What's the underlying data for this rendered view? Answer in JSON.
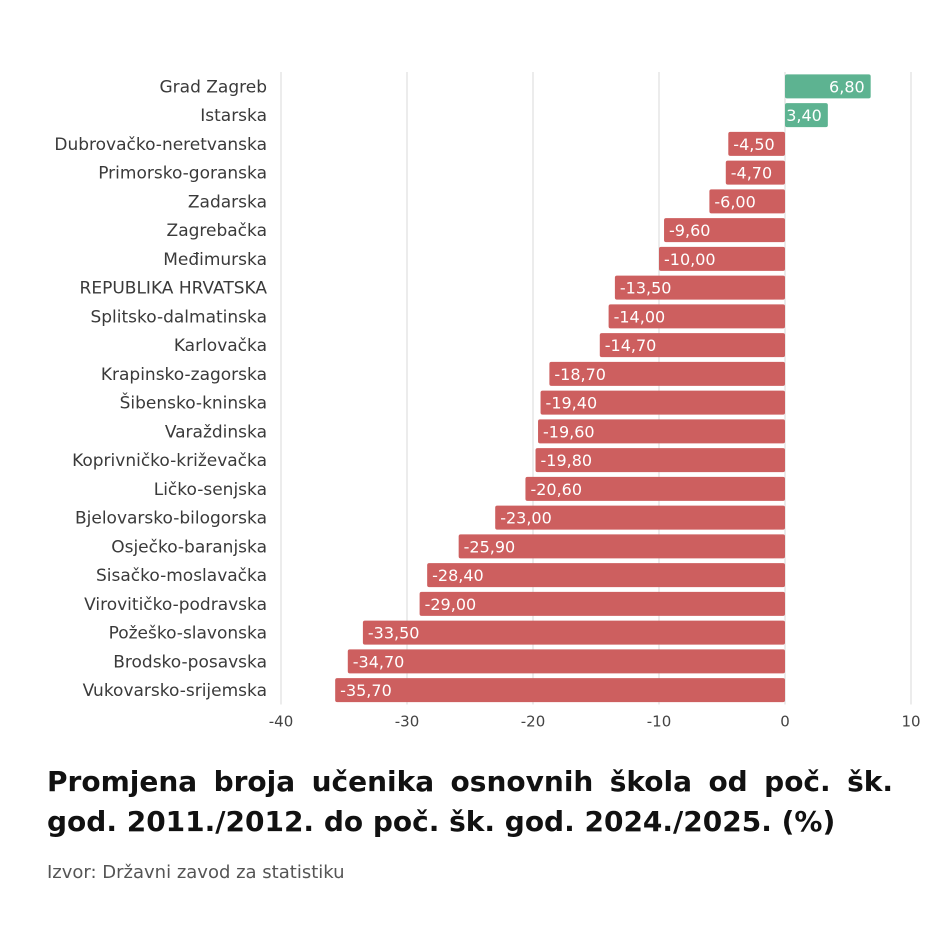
{
  "title": "Promjena broja učenika osnovnih škola od poč. šk. god. 2011./2012. do poč. šk. god. 2024./2025. (%)",
  "source": "Izvor: Državni zavod za statistiku",
  "colors": {
    "positive": "#5db391",
    "negative": "#cd5f5f"
  },
  "chart_data": {
    "type": "bar",
    "orientation": "horizontal",
    "categories": [
      "Grad Zagreb",
      "Istarska",
      "Dubrovačko-neretvanska",
      "Primorsko-goranska",
      "Zadarska",
      "Zagrebačka",
      "Međimurska",
      "REPUBLIKA HRVATSKA",
      "Splitsko-dalmatinska",
      "Karlovačka",
      "Krapinsko-zagorska",
      "Šibensko-kninska",
      "Varaždinska",
      "Koprivničko-križevačka",
      "Ličko-senjska",
      "Bjelovarsko-bilogorska",
      "Osječko-baranjska",
      "Sisačko-moslavačka",
      "Virovitičko-podravska",
      "Požeško-slavonska",
      "Brodsko-posavska",
      "Vukovarsko-srijemska"
    ],
    "values": [
      6.8,
      3.4,
      -4.5,
      -4.7,
      -6.0,
      -9.6,
      -10.0,
      -13.5,
      -14.0,
      -14.7,
      -18.7,
      -19.4,
      -19.6,
      -19.8,
      -20.6,
      -23.0,
      -25.9,
      -28.4,
      -29.0,
      -33.5,
      -34.7,
      -35.7
    ],
    "value_labels": [
      "6,80",
      "3,40",
      "-4,50",
      "-4,70",
      "-6,00",
      "-9,60",
      "-10,00",
      "-13,50",
      "-14,00",
      "-14,70",
      "-18,70",
      "-19,40",
      "-19,60",
      "-19,80",
      "-20,60",
      "-23,00",
      "-25,90",
      "-28,40",
      "-29,00",
      "-33,50",
      "-34,70",
      "-35,70"
    ],
    "xlim": [
      -40,
      10
    ],
    "x_ticks": [
      -40,
      -30,
      -20,
      -10,
      0,
      10
    ],
    "x_tick_labels": [
      "-40",
      "-30",
      "-20",
      "-10",
      "0",
      "10"
    ],
    "grid": true,
    "legend": "none"
  }
}
